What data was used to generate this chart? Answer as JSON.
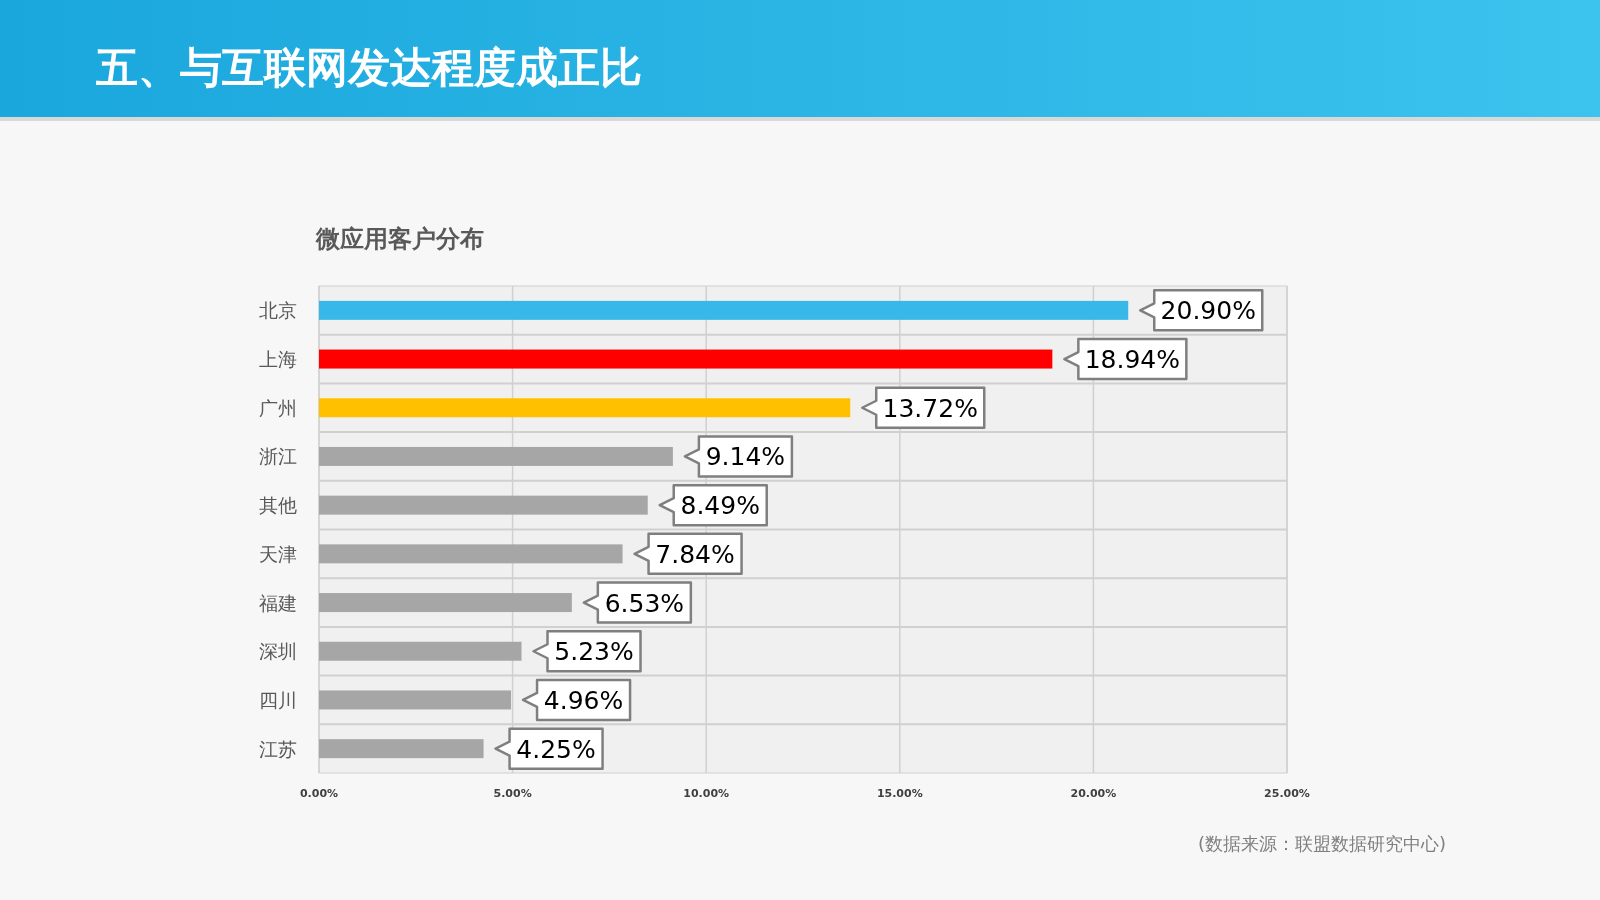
{
  "chart_data": {
    "type": "bar",
    "orientation": "horizontal",
    "title": "五、与互联网发达程度成正比",
    "subtitle": "微应用客户分布",
    "categories": [
      "北京",
      "上海",
      "广州",
      "浙江",
      "其他",
      "天津",
      "福建",
      "深圳",
      "四川",
      "江苏"
    ],
    "values": [
      20.9,
      18.94,
      13.72,
      9.14,
      8.49,
      7.84,
      6.53,
      5.23,
      4.96,
      4.25
    ],
    "value_labels": [
      "20.90%",
      "18.94%",
      "13.72%",
      "9.14%",
      "8.49%",
      "7.84%",
      "6.53%",
      "5.23%",
      "4.96%",
      "4.25%"
    ],
    "colors": [
      "#38b8e8",
      "#ff0000",
      "#ffc000",
      "#a6a6a6",
      "#a6a6a6",
      "#a6a6a6",
      "#a6a6a6",
      "#a6a6a6",
      "#a6a6a6",
      "#a6a6a6"
    ],
    "xlim": [
      0,
      25
    ],
    "xticks": [
      {
        "value": 0,
        "label": "0.00%"
      },
      {
        "value": 5,
        "label": "5.00%"
      },
      {
        "value": 10,
        "label": "10.00%"
      },
      {
        "value": 15,
        "label": "15.00%"
      },
      {
        "value": 20,
        "label": "20.00%"
      },
      {
        "value": 25,
        "label": "25.00%"
      }
    ],
    "grid": "x",
    "annotations": [
      "(数据来源：联盟数据研究中心)"
    ]
  }
}
